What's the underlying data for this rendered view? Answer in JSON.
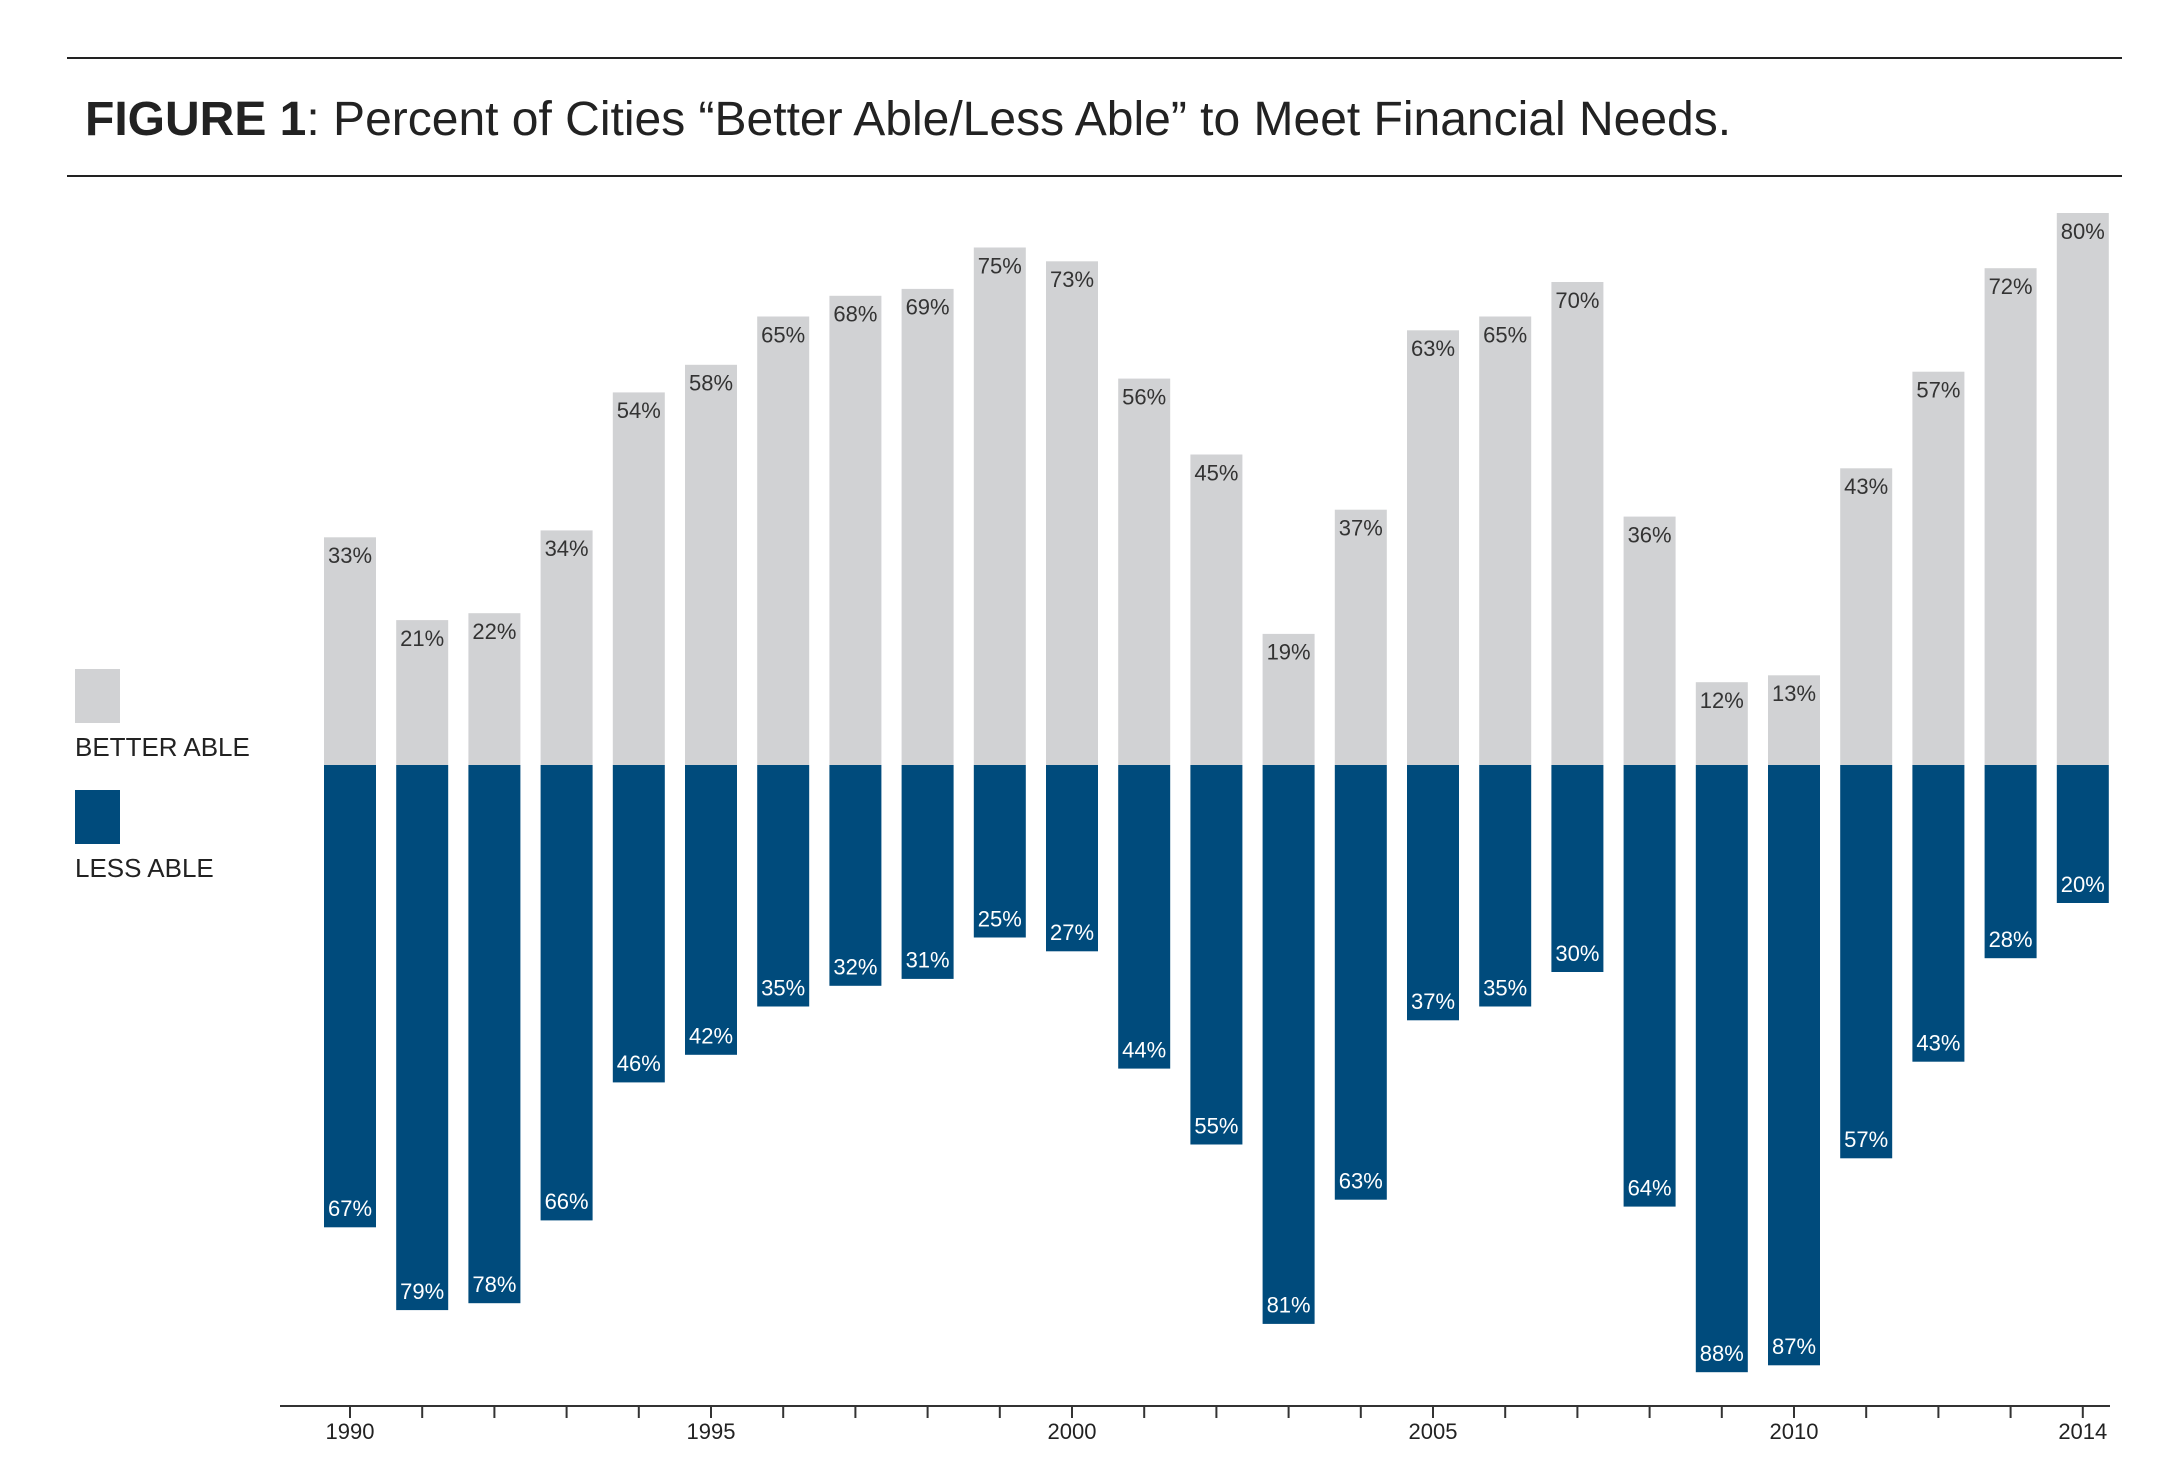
{
  "chart_data": {
    "type": "diverging_bar",
    "figure_label": "FIGURE 1",
    "title": ": Percent of Cities “Better Able/Less Able” to Meet Financial Needs.",
    "categories": [
      "1990",
      null,
      null,
      null,
      null,
      "1995",
      null,
      null,
      null,
      null,
      "2000",
      null,
      null,
      null,
      null,
      "2005",
      null,
      null,
      null,
      null,
      "2010",
      null,
      null,
      null,
      "2014"
    ],
    "series": [
      {
        "name": "BETTER ABLE",
        "color": "#d1d2d4",
        "direction": "up",
        "values": [
          33,
          21,
          22,
          34,
          54,
          58,
          65,
          68,
          69,
          75,
          73,
          56,
          45,
          19,
          37,
          63,
          65,
          70,
          36,
          12,
          13,
          43,
          57,
          72,
          80
        ],
        "value_labels": [
          "33%",
          "21%",
          "22%",
          "34%",
          "54%",
          "58%",
          "65%",
          "68%",
          "69%",
          "75%",
          "73%",
          "56%",
          "45%",
          "19%",
          "37%",
          "63%",
          "65%",
          "70%",
          "36%",
          "12%",
          "13%",
          "43%",
          "57%",
          "72%",
          "80%"
        ]
      },
      {
        "name": "LESS ABLE",
        "color": "#004b7c",
        "direction": "down",
        "values": [
          67,
          79,
          78,
          66,
          46,
          42,
          35,
          32,
          31,
          25,
          27,
          44,
          55,
          81,
          63,
          37,
          35,
          30,
          64,
          88,
          87,
          57,
          43,
          28,
          20
        ],
        "value_labels": [
          "67%",
          "79%",
          "78%",
          "66%",
          "46%",
          "42%",
          "35%",
          "32%",
          "31%",
          "25%",
          "27%",
          "44%",
          "55%",
          "81%",
          "63%",
          "37%",
          "35%",
          "30%",
          "64%",
          "88%",
          "87%",
          "57%",
          "43%",
          "28%",
          "20%"
        ]
      }
    ]
  }
}
